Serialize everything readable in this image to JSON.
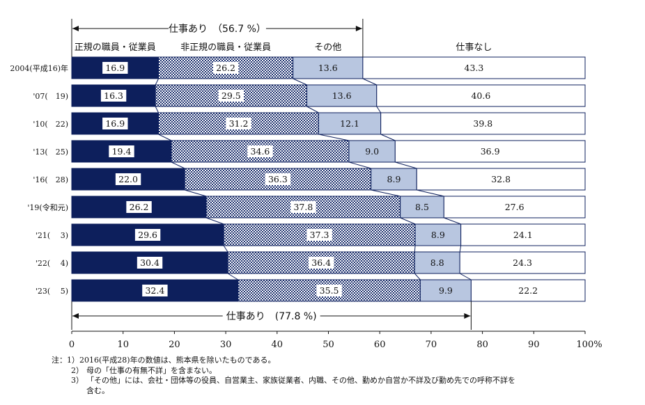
{
  "chart_data": {
    "type": "bar",
    "orientation": "horizontal",
    "stacked": true,
    "percent_stacked": true,
    "categories": [
      "2004(平成16)年",
      "'07(　19)",
      "'10(　22)",
      "'13(　25)",
      "'16(　28)",
      "'19(令和元)",
      "'21(　 3)",
      "'22(　 4)",
      "'23(　 5)"
    ],
    "series": [
      {
        "name": "正規の職員・従業員",
        "color": "#0d1f5c",
        "values": [
          16.9,
          16.3,
          16.9,
          19.4,
          22.0,
          26.2,
          29.6,
          30.4,
          32.4
        ]
      },
      {
        "name": "非正規の職員・従業員",
        "color": "#7a8fb8",
        "values": [
          26.2,
          29.5,
          31.2,
          34.6,
          36.3,
          37.8,
          37.3,
          36.4,
          35.5
        ]
      },
      {
        "name": "その他",
        "color": "#b8c6e0",
        "values": [
          13.6,
          13.6,
          12.1,
          9.0,
          8.9,
          8.5,
          8.9,
          8.8,
          9.9
        ]
      },
      {
        "name": "仕事なし",
        "color": "#ffffff",
        "values": [
          43.3,
          40.6,
          39.8,
          36.9,
          32.8,
          27.6,
          24.1,
          24.3,
          22.2
        ]
      }
    ],
    "data_labels": [
      [
        "16.9",
        "26.2",
        "13.6",
        "43.3"
      ],
      [
        "16.3",
        "29.5",
        "13.6",
        "40.6"
      ],
      [
        "16.9",
        "31.2",
        "12.1",
        "39.8"
      ],
      [
        "19.4",
        "34.6",
        "9.0",
        "36.9"
      ],
      [
        "22.0",
        "36.3",
        "8.9",
        "32.8"
      ],
      [
        "26.2",
        "37.8",
        "8.5",
        "27.6"
      ],
      [
        "29.6",
        "37.3",
        "8.9",
        "24.1"
      ],
      [
        "30.4",
        "36.4",
        "8.8",
        "24.3"
      ],
      [
        "32.4",
        "35.5",
        "9.9",
        "22.2"
      ]
    ],
    "x_ticks": [
      "0",
      "10",
      "20",
      "30",
      "40",
      "50",
      "60",
      "70",
      "80",
      "90",
      "100%"
    ],
    "xlim": [
      0,
      100
    ],
    "annotations": [
      {
        "text": "仕事あり　（56.7 %）",
        "from": 0,
        "to": 56.7,
        "row": 0,
        "position": "above"
      },
      {
        "text": "仕事あり　(77.8 %)",
        "from": 0,
        "to": 77.8,
        "row": 8,
        "position": "below"
      }
    ]
  },
  "notes": {
    "lead": "注：",
    "items": [
      {
        "num": "1）",
        "text": "2016(平成28)年の数値は、熊本県を除いたものである。"
      },
      {
        "num": "2）",
        "text": "母の「仕事の有無不詳」を含まない。"
      },
      {
        "num": "3）",
        "text": "「その他」には、会社・団体等の役員、自営業主、家族従業者、内職、その他、勤めか自営か不詳及び勤め先での呼称不詳を",
        "cont": "含む。"
      }
    ]
  }
}
